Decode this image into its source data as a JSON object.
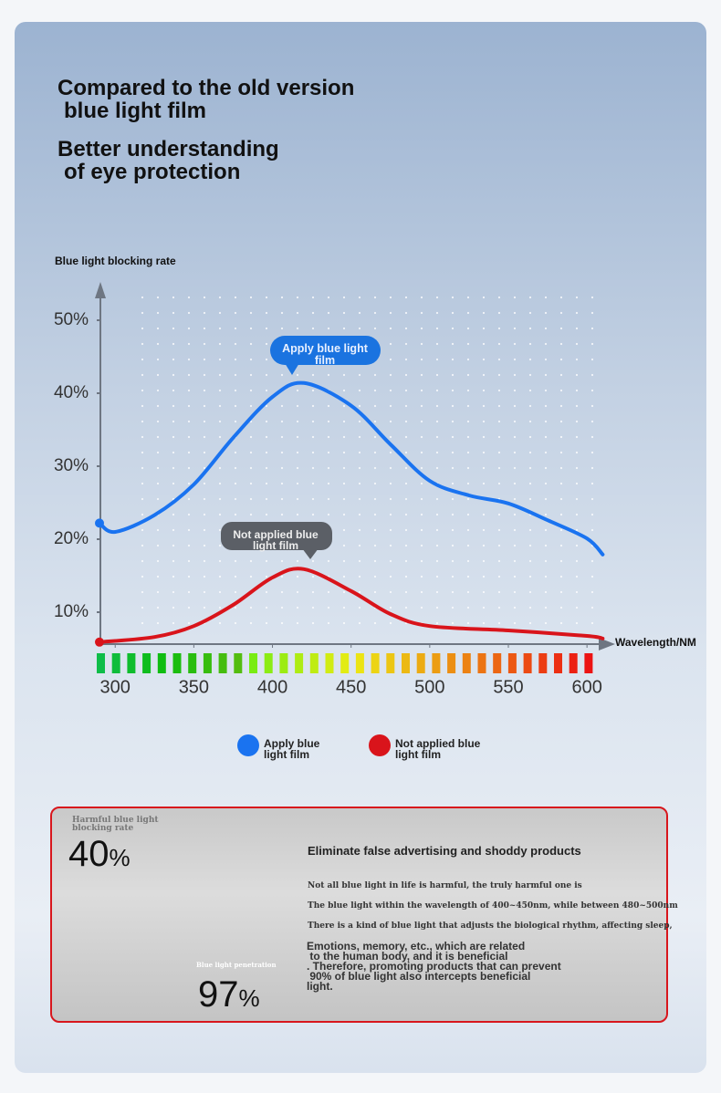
{
  "header": {
    "title": [
      "Compared to the old version",
      "blue light film"
    ],
    "subtitle": [
      "Better understanding",
      "of eye protection"
    ]
  },
  "chart_data": {
    "type": "line",
    "y_label": "Blue light blocking rate",
    "x_label": "Wavelength/NM",
    "xlim": [
      290,
      615
    ],
    "ylim": [
      5.5,
      54
    ],
    "xticks": [
      300,
      350,
      400,
      450,
      500,
      550,
      600
    ],
    "yticks": [
      {
        "value": 10,
        "label": "10%"
      },
      {
        "value": 20,
        "label": "20%"
      },
      {
        "value": 30,
        "label": "30%"
      },
      {
        "value": 40,
        "label": "40%"
      },
      {
        "value": 50,
        "label": "50%"
      }
    ],
    "series": [
      {
        "name": "Apply blue light film",
        "color": "#1a73f0",
        "x": [
          290,
          300,
          325,
          350,
          375,
          400,
          420,
          450,
          475,
          500,
          525,
          550,
          575,
          600,
          610
        ],
        "values": [
          22.2,
          21,
          23.3,
          27.5,
          33.9,
          39.5,
          41.4,
          38.3,
          33,
          28,
          26,
          24.9,
          22.6,
          20.1,
          17.9
        ]
      },
      {
        "name": "Not applied blue light film",
        "color": "#d9141b",
        "x": [
          290,
          325,
          350,
          375,
          400,
          420,
          450,
          475,
          500,
          550,
          600,
          610
        ],
        "values": [
          5.9,
          6.6,
          8.1,
          11,
          14.75,
          15.9,
          12.9,
          9.75,
          8.1,
          7.5,
          6.75,
          6.4
        ]
      }
    ]
  },
  "info_box": {
    "stat_1": {
      "label": "Harmful blue light blocking rate",
      "value": "40",
      "unit": "%"
    },
    "stat_2": {
      "label": "Blue light penetration",
      "value": "97",
      "unit": "%"
    },
    "heading": "Eliminate false advertising and shoddy products",
    "small_lines": [
      "Not all blue light in life is harmful, the truly harmful one is",
      "The blue light within the wavelength of 400~450nm, while between 480~500nm",
      "There is a kind of blue light that adjusts the biological rhythm, affecting sleep,"
    ],
    "large_lines": [
      "Emotions, memory, etc., which are related",
      " to the human body, and it is beneficial",
      ". Therefore, promoting products that can prevent",
      " 90% of blue light also intercepts beneficial",
      "light."
    ]
  }
}
